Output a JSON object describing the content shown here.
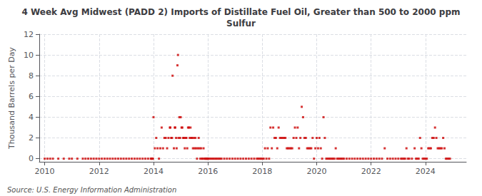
{
  "chart_data": {
    "type": "scatter",
    "title": "4 Week Avg Midwest (PADD 2) Imports of Distillate Fuel Oil, Greater than 500 to 2000 ppm\nSulfur",
    "ylabel": "Thousand Barrels per Day",
    "annotation": "Source: U.S. Energy Information Administration",
    "color": "#cc0000",
    "marker": "square",
    "grid": true,
    "xlim": [
      2009.8,
      2025.5
    ],
    "xticks": [
      2010,
      2012,
      2014,
      2016,
      2018,
      2020,
      2022,
      2024
    ],
    "ylim": [
      -0.3,
      12
    ],
    "yticks": [
      0,
      2,
      4,
      6,
      8,
      10,
      12
    ],
    "x": [
      2010.0,
      2010.1,
      2010.2,
      2010.3,
      2010.5,
      2010.7,
      2010.9,
      2011.0,
      2011.2,
      2011.4,
      2011.5,
      2011.6,
      2011.7,
      2011.8,
      2011.9,
      2012.0,
      2012.1,
      2012.2,
      2012.3,
      2012.4,
      2012.5,
      2012.6,
      2012.7,
      2012.8,
      2012.9,
      2013.0,
      2013.1,
      2013.2,
      2013.3,
      2013.4,
      2013.5,
      2013.6,
      2013.7,
      2013.8,
      2013.9,
      2013.92,
      2013.95,
      2013.98,
      2014.0,
      2014.05,
      2014.1,
      2014.15,
      2014.2,
      2014.25,
      2014.3,
      2014.35,
      2014.4,
      2014.45,
      2014.5,
      2014.55,
      2014.6,
      2014.62,
      2014.65,
      2014.68,
      2014.7,
      2014.75,
      2014.78,
      2014.8,
      2014.83,
      2014.85,
      2014.88,
      2014.9,
      2014.92,
      2014.95,
      2014.98,
      2015.0,
      2015.03,
      2015.06,
      2015.09,
      2015.12,
      2015.15,
      2015.18,
      2015.21,
      2015.24,
      2015.27,
      2015.3,
      2015.33,
      2015.36,
      2015.39,
      2015.42,
      2015.45,
      2015.48,
      2015.51,
      2015.54,
      2015.57,
      2015.6,
      2015.63,
      2015.66,
      2015.69,
      2015.72,
      2015.75,
      2015.78,
      2015.81,
      2015.84,
      2015.87,
      2015.9,
      2015.93,
      2015.96,
      2015.99,
      2016.0,
      2016.05,
      2016.1,
      2016.15,
      2016.2,
      2016.25,
      2016.3,
      2016.35,
      2016.4,
      2016.45,
      2016.5,
      2016.6,
      2016.7,
      2016.8,
      2016.9,
      2017.0,
      2017.1,
      2017.2,
      2017.3,
      2017.4,
      2017.5,
      2017.6,
      2017.7,
      2017.8,
      2017.85,
      2017.9,
      2017.95,
      2018.0,
      2018.05,
      2018.1,
      2018.15,
      2018.2,
      2018.25,
      2018.3,
      2018.35,
      2018.4,
      2018.45,
      2018.5,
      2018.55,
      2018.6,
      2018.65,
      2018.7,
      2018.75,
      2018.8,
      2018.85,
      2018.9,
      2018.95,
      2019.0,
      2019.05,
      2019.1,
      2019.15,
      2019.2,
      2019.25,
      2019.3,
      2019.35,
      2019.4,
      2019.45,
      2019.5,
      2019.55,
      2019.6,
      2019.65,
      2019.7,
      2019.75,
      2019.8,
      2019.85,
      2019.9,
      2019.95,
      2020.0,
      2020.05,
      2020.1,
      2020.15,
      2020.2,
      2020.25,
      2020.3,
      2020.35,
      2020.4,
      2020.45,
      2020.5,
      2020.55,
      2020.6,
      2020.65,
      2020.7,
      2020.75,
      2020.8,
      2020.85,
      2020.9,
      2020.95,
      2021.0,
      2021.1,
      2021.2,
      2021.3,
      2021.4,
      2021.5,
      2021.6,
      2021.7,
      2021.8,
      2021.9,
      2022.0,
      2022.1,
      2022.2,
      2022.3,
      2022.4,
      2022.5,
      2022.6,
      2022.7,
      2022.8,
      2022.9,
      2023.0,
      2023.1,
      2023.15,
      2023.2,
      2023.25,
      2023.3,
      2023.35,
      2023.4,
      2023.5,
      2023.6,
      2023.65,
      2023.7,
      2023.75,
      2023.8,
      2023.85,
      2023.9,
      2023.95,
      2024.0,
      2024.05,
      2024.1,
      2024.15,
      2024.2,
      2024.25,
      2024.3,
      2024.35,
      2024.4,
      2024.45,
      2024.5,
      2024.55,
      2024.6,
      2024.65,
      2024.7,
      2024.75,
      2024.8,
      2024.85,
      2024.9
    ],
    "values": [
      0,
      0,
      0,
      0,
      0,
      0,
      0,
      0,
      0,
      0,
      0,
      0,
      0,
      0,
      0,
      0,
      0,
      0,
      0,
      0,
      0,
      0,
      0,
      0,
      0,
      0,
      0,
      0,
      0,
      0,
      0,
      0,
      0,
      0,
      0,
      0,
      0,
      0,
      4,
      1,
      2,
      1,
      0,
      1,
      3,
      1,
      2,
      2,
      1,
      2,
      3,
      3,
      2,
      2,
      8,
      1,
      3,
      3,
      2,
      1,
      9,
      10,
      2,
      4,
      2,
      4,
      3,
      3,
      2,
      2,
      1,
      2,
      2,
      1,
      3,
      3,
      2,
      3,
      2,
      2,
      1,
      2,
      1,
      2,
      1,
      0,
      1,
      2,
      1,
      0,
      1,
      0,
      0,
      1,
      0,
      0,
      0,
      0,
      0,
      0,
      0,
      0,
      0,
      0,
      0,
      0,
      0,
      0,
      0,
      0,
      0,
      0,
      0,
      0,
      0,
      0,
      0,
      0,
      0,
      0,
      0,
      0,
      0,
      0,
      0,
      0,
      0,
      0,
      1,
      0,
      1,
      0,
      3,
      1,
      3,
      2,
      2,
      1,
      3,
      2,
      2,
      2,
      2,
      2,
      1,
      1,
      1,
      1,
      1,
      2,
      3,
      2,
      3,
      1,
      2,
      5,
      4,
      2,
      2,
      1,
      1,
      1,
      1,
      2,
      0,
      1,
      2,
      1,
      2,
      1,
      0,
      4,
      2,
      0,
      0,
      0,
      0,
      0,
      0,
      0,
      1,
      0,
      0,
      0,
      0,
      0,
      0,
      0,
      0,
      0,
      0,
      0,
      0,
      0,
      0,
      0,
      0,
      0,
      0,
      0,
      0,
      1,
      0,
      0,
      0,
      0,
      0,
      0,
      0,
      0,
      0,
      1,
      0,
      0,
      0,
      1,
      0,
      0,
      0,
      2,
      1,
      0,
      0,
      0,
      0,
      1,
      1,
      1,
      2,
      2,
      3,
      2,
      1,
      1,
      1,
      1,
      2,
      1,
      0,
      0,
      0,
      0
    ]
  }
}
